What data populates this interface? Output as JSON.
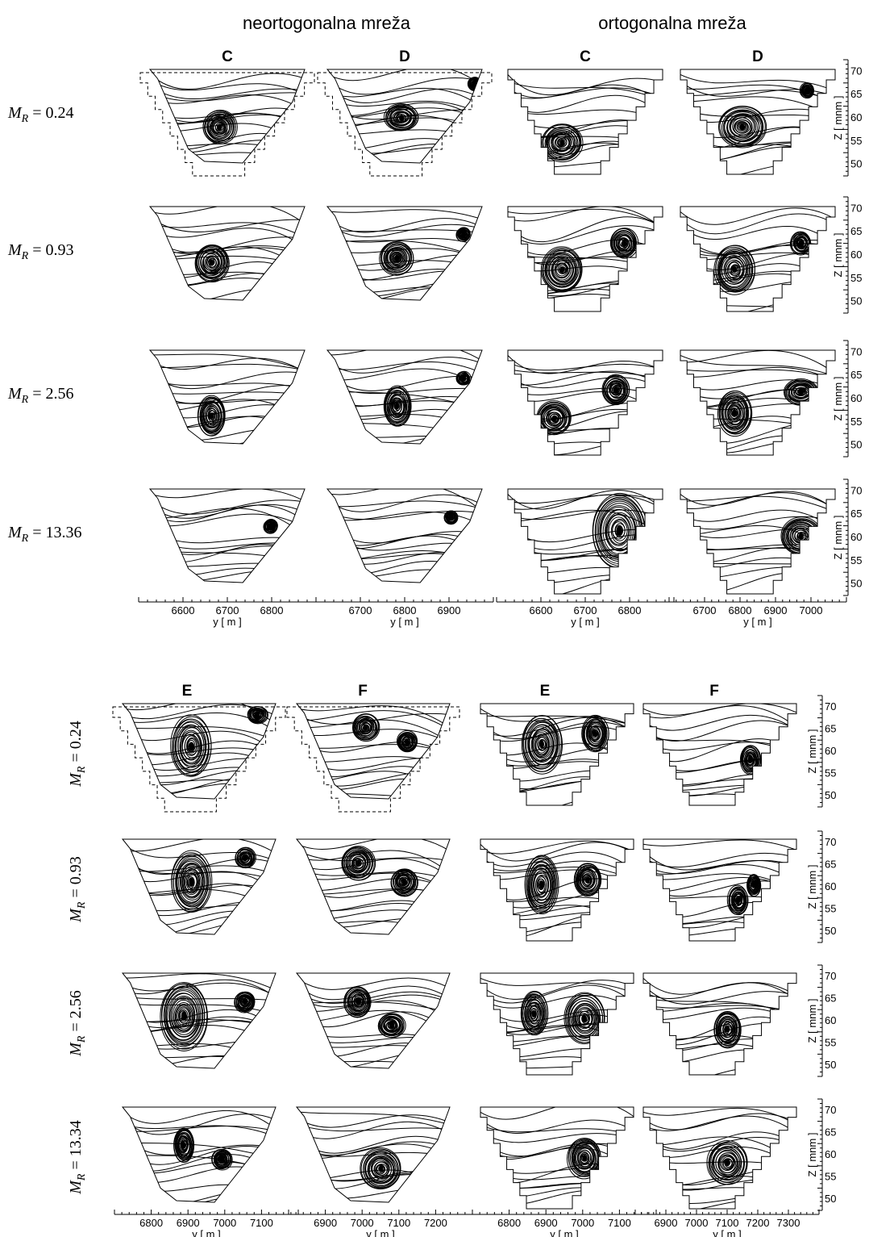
{
  "headers": {
    "left": "neortogonalna mreža",
    "right": "ortogonalna mreža"
  },
  "top": {
    "columns": [
      "C",
      "D",
      "C",
      "D"
    ],
    "rows": [
      "M_R = 0.24",
      "M_R = 0.93",
      "M_R = 2.56",
      "M_R = 13.36"
    ],
    "rows_parts": [
      {
        "sym": "M",
        "sub": "R",
        "val": " = 0.24"
      },
      {
        "sym": "M",
        "sub": "R",
        "val": " = 0.93"
      },
      {
        "sym": "M",
        "sub": "R",
        "val": " = 2.56"
      },
      {
        "sym": "M",
        "sub": "R",
        "val": " = 13.36"
      }
    ],
    "x_axes": [
      {
        "ticks": [
          "6600",
          "6700",
          "6800"
        ],
        "label": "y [ m ]"
      },
      {
        "ticks": [
          "6700",
          "6800",
          "6900"
        ],
        "label": "y [ m ]"
      },
      {
        "ticks": [
          "6600",
          "6700",
          "6800"
        ],
        "label": "y [ m ]"
      },
      {
        "ticks": [
          "6700",
          "6800",
          "6900",
          "7000"
        ],
        "label": "y [ m ]"
      }
    ],
    "z_axis": {
      "ticks": [
        "70",
        "65",
        "60",
        "55",
        "50"
      ],
      "label": "Z [ mnm ]"
    }
  },
  "bottom": {
    "columns": [
      "E",
      "F",
      "E",
      "F"
    ],
    "rows_parts": [
      {
        "sym": "M",
        "sub": "R",
        "val": " = 0.24"
      },
      {
        "sym": "M",
        "sub": "R",
        "val": " = 0.93"
      },
      {
        "sym": "M",
        "sub": "R",
        "val": " = 2.56"
      },
      {
        "sym": "M",
        "sub": "R",
        "val": " = 13.34"
      }
    ],
    "x_axes": [
      {
        "ticks": [
          "6800",
          "6900",
          "7000",
          "7100"
        ],
        "label": "y [ m ]"
      },
      {
        "ticks": [
          "6900",
          "7000",
          "7100",
          "7200"
        ],
        "label": "y [ m ]"
      },
      {
        "ticks": [
          "6800",
          "6900",
          "7000",
          "7100"
        ],
        "label": "y [ m ]"
      },
      {
        "ticks": [
          "6900",
          "7000",
          "7100",
          "7200",
          "7300"
        ],
        "label": "y [ m ]"
      }
    ],
    "z_axis": {
      "ticks": [
        "70",
        "65",
        "60",
        "55",
        "50"
      ],
      "label": "Z [ mnm ]"
    }
  }
}
